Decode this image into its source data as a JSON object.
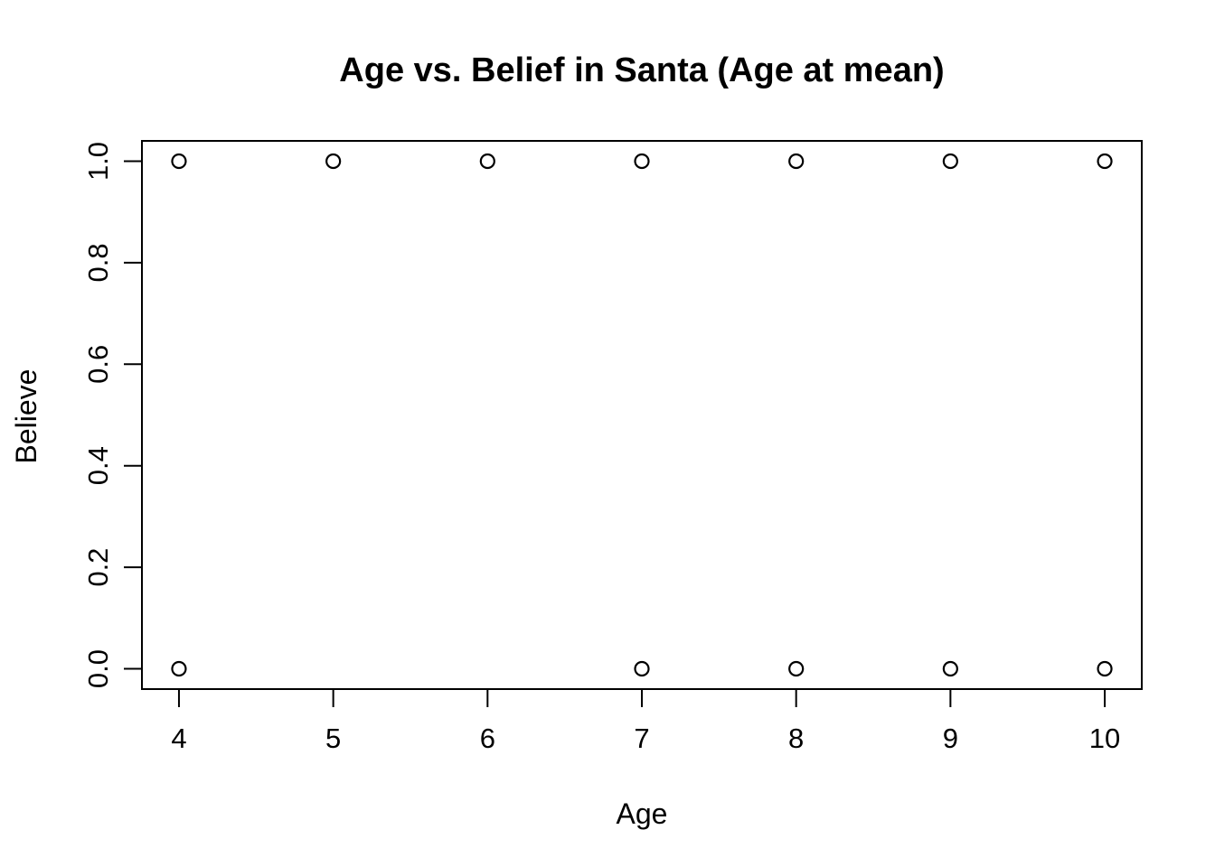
{
  "page": {
    "background_color": "#ffffff",
    "foreground_color": "#000000"
  },
  "chart_data": {
    "type": "scatter",
    "title": "Age vs. Belief in Santa (Age at mean)",
    "xlabel": "Age",
    "ylabel": "Believe",
    "x_tick_labels": [
      "4",
      "5",
      "6",
      "7",
      "8",
      "9",
      "10"
    ],
    "x_tick_values": [
      4,
      5,
      6,
      7,
      8,
      9,
      10
    ],
    "y_tick_labels": [
      "0.0",
      "0.2",
      "0.4",
      "0.6",
      "0.8",
      "1.0"
    ],
    "y_tick_values": [
      0.0,
      0.2,
      0.4,
      0.6,
      0.8,
      1.0
    ],
    "xlim": [
      3.76,
      10.24
    ],
    "ylim": [
      -0.04,
      1.04
    ],
    "grid": false,
    "legend": "none",
    "marker": "open-circle",
    "marker_stroke_color": "#000000",
    "points": [
      {
        "x": 4,
        "y": 1
      },
      {
        "x": 5,
        "y": 1
      },
      {
        "x": 6,
        "y": 1
      },
      {
        "x": 7,
        "y": 1
      },
      {
        "x": 8,
        "y": 1
      },
      {
        "x": 9,
        "y": 1
      },
      {
        "x": 10,
        "y": 1
      },
      {
        "x": 4,
        "y": 0
      },
      {
        "x": 7,
        "y": 0
      },
      {
        "x": 8,
        "y": 0
      },
      {
        "x": 9,
        "y": 0
      },
      {
        "x": 10,
        "y": 0
      }
    ]
  }
}
